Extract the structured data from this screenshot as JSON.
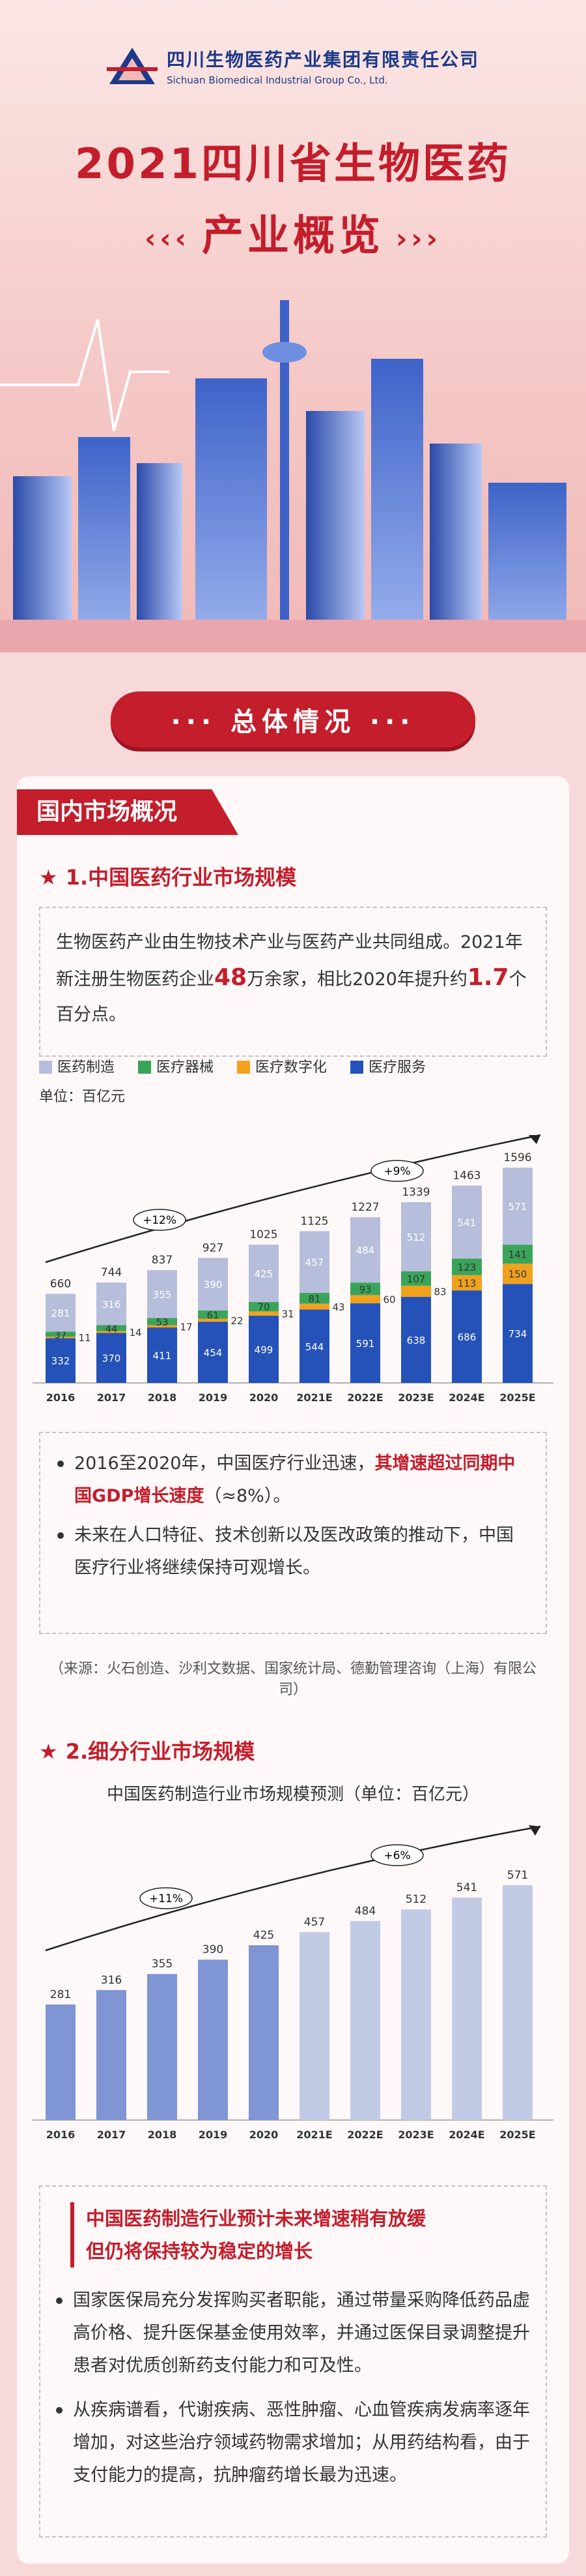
{
  "header": {
    "company_cn": "四川生物医药产业集团有限责任公司",
    "company_en": "Sichuan Biomedical Industrial Group Co., Ltd.",
    "title": "2021四川省生物医药",
    "subtitle": "产业概览",
    "deco_left": "‹‹‹",
    "deco_right": "›››"
  },
  "section_banner": "··· 总体情况 ···",
  "card_tab": "国内市场概况",
  "section1": {
    "heading": "1.中国医药行业市场规模",
    "intro_1": "生物医药产业由生物技术产业与医药产业共同组成。2021年新注册生物医药企业",
    "intro_num1": "48",
    "intro_2": "万余家，相比2020年提升约",
    "intro_num2": "1.7",
    "intro_3": "个百分点。",
    "unit": "单位：百亿元",
    "bullet1_a": "2016至2020年，中国医疗行业迅速，",
    "bullet1_b": "其增速超过同期中国GDP增长速度",
    "bullet1_c": "（≈8%）。",
    "bullet2": "未来在人口特征、技术创新以及医改政策的推动下，中国医疗行业将继续保持可观增长。",
    "source": "（来源：火石创造、沙利文数据、国家统计局、德勤管理咨询（上海）有限公司）"
  },
  "section2": {
    "heading": "2.细分行业市场规模",
    "chart_title": "中国医药制造行业市场规模预测（单位：百亿元）",
    "callout_head_1": "中国医药制造行业预计未来增速稍有放缓",
    "callout_head_2": "但仍将保持较为稳定的增长",
    "bullet1": "国家医保局充分发挥购买者职能，通过带量采购降低药品虚高价格、提升医保基金使用效率，并通过医保目录调整提升患者对优质创新药支付能力和可及性。",
    "bullet2": "从疾病谱看，代谢疾病、恶性肿瘤、心血管疾病发病率逐年增加，对这些治疗领域药物需求增加；从用药结构看，由于支付能力的提高，抗肿瘤药增长最为迅速。"
  },
  "colors": {
    "red": "#c41d2b",
    "pharma": "#b7bedb",
    "device": "#3aa55a",
    "digital": "#f1a21d",
    "service": "#2552b8"
  },
  "chart_data": [
    {
      "type": "bar",
      "stacked": true,
      "categories": [
        "2016",
        "2017",
        "2018",
        "2019",
        "2020",
        "2021E",
        "2022E",
        "2023E",
        "2024E",
        "2025E"
      ],
      "series": [
        {
          "name": "医疗服务",
          "values": [
            332,
            370,
            411,
            454,
            499,
            544,
            591,
            638,
            686,
            734
          ],
          "color": "#2552b8"
        },
        {
          "name": "医疗数字化",
          "values": [
            11,
            14,
            17,
            22,
            31,
            43,
            60,
            83,
            113,
            150
          ],
          "color": "#f1a21d"
        },
        {
          "name": "医疗器械",
          "values": [
            37,
            44,
            53,
            61,
            70,
            81,
            93,
            107,
            123,
            141
          ],
          "color": "#3aa55a"
        },
        {
          "name": "医药制造",
          "values": [
            281,
            316,
            355,
            390,
            425,
            457,
            484,
            512,
            541,
            571
          ],
          "color": "#b7bedb"
        }
      ],
      "totals": [
        660,
        744,
        837,
        927,
        1025,
        1125,
        1227,
        1339,
        1463,
        1596
      ],
      "annotations": [
        "+12%",
        "+9%"
      ],
      "ylabel": "单位：百亿元",
      "legend": "top-left"
    },
    {
      "type": "bar",
      "title": "中国医药制造行业市场规模预测（单位：百亿元）",
      "categories": [
        "2016",
        "2017",
        "2018",
        "2019",
        "2020",
        "2021E",
        "2022E",
        "2023E",
        "2024E",
        "2025E"
      ],
      "values": [
        281,
        316,
        355,
        390,
        425,
        457,
        484,
        512,
        541,
        571
      ],
      "annotations": [
        "+11%",
        "+6%"
      ]
    }
  ]
}
